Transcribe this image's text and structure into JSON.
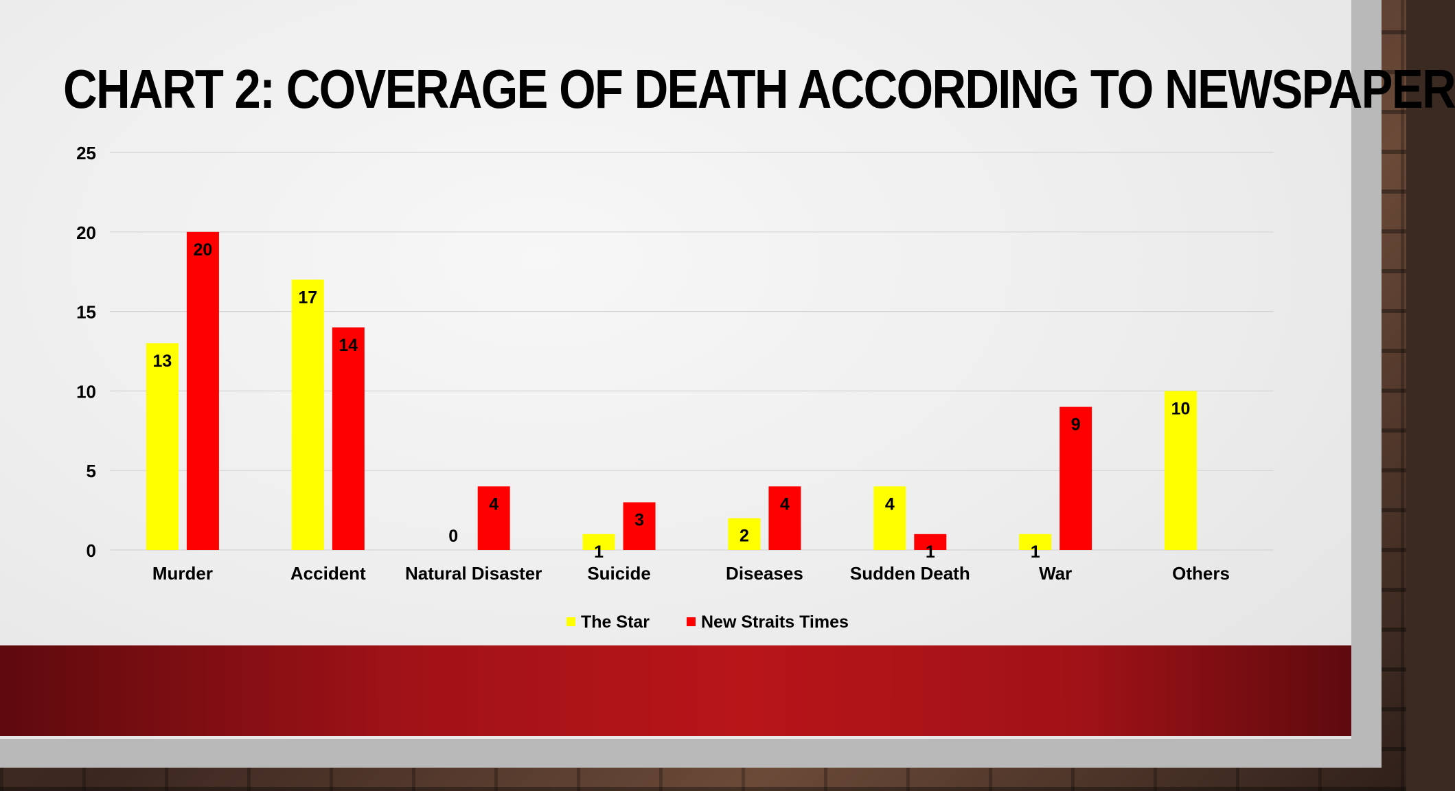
{
  "slide": {
    "title": "Chart 2: Coverage of Death according to Newspaper"
  },
  "colors": {
    "the_star": "#ffff00",
    "new_straits_times": "#ff0000",
    "footer_band": "#b81519"
  },
  "chart_data": {
    "type": "bar",
    "categories": [
      "Murder",
      "Accident",
      "Natural Disaster",
      "Suicide",
      "Diseases",
      "Sudden Death",
      "War",
      "Others"
    ],
    "series": [
      {
        "name": "The Star",
        "values": [
          13,
          17,
          0,
          1,
          2,
          4,
          1,
          10
        ]
      },
      {
        "name": "New Straits Times",
        "values": [
          20,
          14,
          4,
          3,
          4,
          1,
          9,
          0
        ]
      }
    ],
    "data_labels": [
      [
        "13",
        "17",
        "0",
        "1",
        "2",
        "4",
        "1",
        "10"
      ],
      [
        "20",
        "14",
        "4",
        "3",
        "4",
        "1",
        "9",
        ""
      ]
    ],
    "y_ticks": [
      0,
      5,
      10,
      15,
      20,
      25
    ],
    "ylim": [
      0,
      25
    ],
    "grid": true,
    "legend_position": "bottom"
  }
}
